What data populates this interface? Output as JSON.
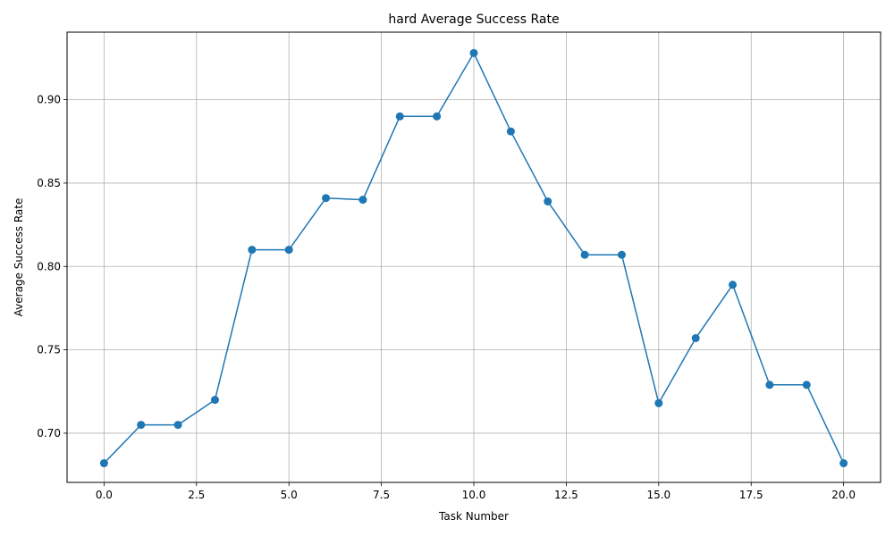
{
  "chart_data": {
    "type": "line",
    "title": "hard Average Success Rate",
    "xlabel": "Task Number",
    "ylabel": "Average Success Rate",
    "xlim": [
      -1.0,
      21.0
    ],
    "ylim": [
      0.6705,
      0.9405
    ],
    "x_ticks": [
      0.0,
      2.5,
      5.0,
      7.5,
      10.0,
      12.5,
      15.0,
      17.5,
      20.0
    ],
    "x_tick_labels": [
      "0.0",
      "2.5",
      "5.0",
      "7.5",
      "10.0",
      "12.5",
      "15.0",
      "17.5",
      "20.0"
    ],
    "y_ticks": [
      0.7,
      0.75,
      0.8,
      0.85,
      0.9
    ],
    "y_tick_labels": [
      "0.70",
      "0.75",
      "0.80",
      "0.85",
      "0.90"
    ],
    "grid": true,
    "series": [
      {
        "color": "#1f77b4",
        "marker": "circle",
        "x": [
          0,
          1,
          2,
          3,
          4,
          5,
          6,
          7,
          8,
          9,
          10,
          11,
          12,
          13,
          14,
          15,
          16,
          17,
          18,
          19,
          20
        ],
        "values": [
          0.682,
          0.705,
          0.705,
          0.72,
          0.81,
          0.81,
          0.841,
          0.84,
          0.89,
          0.89,
          0.928,
          0.881,
          0.839,
          0.807,
          0.807,
          0.718,
          0.757,
          0.789,
          0.729,
          0.729,
          0.682
        ]
      }
    ]
  }
}
